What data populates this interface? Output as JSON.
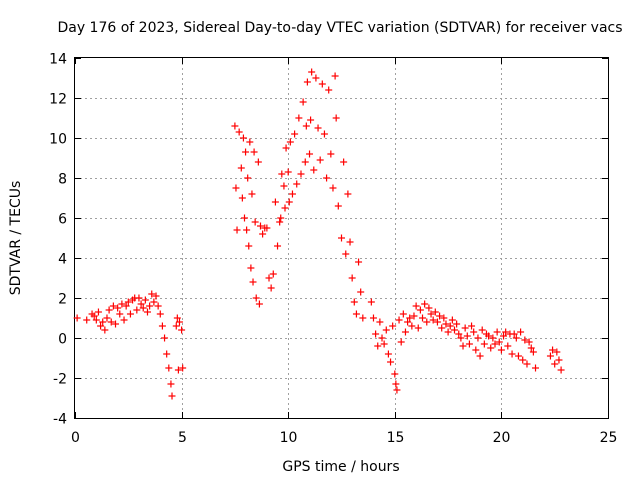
{
  "chart_data": {
    "type": "scatter",
    "title": "Day 176 of 2023, Sidereal Day-to-day VTEC variation (SDTVAR) for receiver vacs",
    "xlabel": "GPS time / hours",
    "ylabel": "SDTVAR / TECUs",
    "xlim": [
      0,
      25
    ],
    "ylim": [
      -4,
      14
    ],
    "xticks": [
      0,
      5,
      10,
      15,
      20,
      25
    ],
    "yticks": [
      -4,
      -2,
      0,
      2,
      4,
      6,
      8,
      10,
      12,
      14
    ],
    "grid": true,
    "marker": "+",
    "color": "#ff0000",
    "series": [
      {
        "name": "SDTVAR",
        "points": [
          [
            0.1,
            1.0
          ],
          [
            0.55,
            0.9
          ],
          [
            0.8,
            1.2
          ],
          [
            0.9,
            1.1
          ],
          [
            1.0,
            0.9
          ],
          [
            1.1,
            1.3
          ],
          [
            1.2,
            0.6
          ],
          [
            1.3,
            0.8
          ],
          [
            1.4,
            0.4
          ],
          [
            1.5,
            1.0
          ],
          [
            1.6,
            1.4
          ],
          [
            1.7,
            0.8
          ],
          [
            1.8,
            1.6
          ],
          [
            1.9,
            0.7
          ],
          [
            2.0,
            1.5
          ],
          [
            2.1,
            1.2
          ],
          [
            2.2,
            1.7
          ],
          [
            2.3,
            0.9
          ],
          [
            2.4,
            1.6
          ],
          [
            2.5,
            1.8
          ],
          [
            2.6,
            1.2
          ],
          [
            2.7,
            1.9
          ],
          [
            2.8,
            2.0
          ],
          [
            2.9,
            1.4
          ],
          [
            3.0,
            2.0
          ],
          [
            3.1,
            1.7
          ],
          [
            3.2,
            1.5
          ],
          [
            3.3,
            1.9
          ],
          [
            3.4,
            1.3
          ],
          [
            3.5,
            1.6
          ],
          [
            3.6,
            2.2
          ],
          [
            3.7,
            1.8
          ],
          [
            3.8,
            2.1
          ],
          [
            3.9,
            1.6
          ],
          [
            4.0,
            1.2
          ],
          [
            4.1,
            0.6
          ],
          [
            4.2,
            0.0
          ],
          [
            4.3,
            -0.8
          ],
          [
            4.4,
            -1.5
          ],
          [
            4.5,
            -2.3
          ],
          [
            4.55,
            -2.9
          ],
          [
            4.75,
            0.6
          ],
          [
            4.8,
            1.0
          ],
          [
            4.85,
            -1.6
          ],
          [
            4.9,
            0.8
          ],
          [
            5.0,
            0.4
          ],
          [
            5.05,
            -1.5
          ],
          [
            7.5,
            10.6
          ],
          [
            7.55,
            7.5
          ],
          [
            7.6,
            5.4
          ],
          [
            7.7,
            10.3
          ],
          [
            7.8,
            8.5
          ],
          [
            7.85,
            7.0
          ],
          [
            7.9,
            10.0
          ],
          [
            7.95,
            6.0
          ],
          [
            8.0,
            9.3
          ],
          [
            8.05,
            5.4
          ],
          [
            8.1,
            8.0
          ],
          [
            8.15,
            4.6
          ],
          [
            8.2,
            9.8
          ],
          [
            8.25,
            3.5
          ],
          [
            8.3,
            7.2
          ],
          [
            8.35,
            2.8
          ],
          [
            8.4,
            9.3
          ],
          [
            8.45,
            5.8
          ],
          [
            8.5,
            2.0
          ],
          [
            8.6,
            8.8
          ],
          [
            8.65,
            1.7
          ],
          [
            8.7,
            5.6
          ],
          [
            8.8,
            5.2
          ],
          [
            8.9,
            5.5
          ],
          [
            9.0,
            5.5
          ],
          [
            9.1,
            3.0
          ],
          [
            9.2,
            2.5
          ],
          [
            9.3,
            3.2
          ],
          [
            9.4,
            6.8
          ],
          [
            9.5,
            4.6
          ],
          [
            9.6,
            5.8
          ],
          [
            9.65,
            6.0
          ],
          [
            9.7,
            8.2
          ],
          [
            9.8,
            7.6
          ],
          [
            9.85,
            6.5
          ],
          [
            9.9,
            9.5
          ],
          [
            10.0,
            8.3
          ],
          [
            10.05,
            6.8
          ],
          [
            10.1,
            9.8
          ],
          [
            10.2,
            7.2
          ],
          [
            10.3,
            10.2
          ],
          [
            10.4,
            7.7
          ],
          [
            10.5,
            11.0
          ],
          [
            10.6,
            8.2
          ],
          [
            10.7,
            11.8
          ],
          [
            10.8,
            8.8
          ],
          [
            10.85,
            10.6
          ],
          [
            10.9,
            12.8
          ],
          [
            11.0,
            9.2
          ],
          [
            11.05,
            10.9
          ],
          [
            11.1,
            13.3
          ],
          [
            11.2,
            8.4
          ],
          [
            11.3,
            13.0
          ],
          [
            11.4,
            10.5
          ],
          [
            11.5,
            8.9
          ],
          [
            11.6,
            12.7
          ],
          [
            11.7,
            10.2
          ],
          [
            11.8,
            8.0
          ],
          [
            11.9,
            12.4
          ],
          [
            12.0,
            9.2
          ],
          [
            12.1,
            7.5
          ],
          [
            12.2,
            13.1
          ],
          [
            12.25,
            11.0
          ],
          [
            12.35,
            6.6
          ],
          [
            12.5,
            5.0
          ],
          [
            12.6,
            8.8
          ],
          [
            12.7,
            4.2
          ],
          [
            12.8,
            7.2
          ],
          [
            12.9,
            4.8
          ],
          [
            13.0,
            3.0
          ],
          [
            13.1,
            1.8
          ],
          [
            13.2,
            1.2
          ],
          [
            13.3,
            3.8
          ],
          [
            13.4,
            2.3
          ],
          [
            13.5,
            1.0
          ],
          [
            13.9,
            1.8
          ],
          [
            14.0,
            1.0
          ],
          [
            14.1,
            0.2
          ],
          [
            14.2,
            -0.4
          ],
          [
            14.3,
            0.8
          ],
          [
            14.4,
            0.0
          ],
          [
            14.5,
            -0.3
          ],
          [
            14.6,
            0.4
          ],
          [
            14.7,
            -0.8
          ],
          [
            14.8,
            -1.2
          ],
          [
            14.9,
            0.6
          ],
          [
            15.0,
            -1.8
          ],
          [
            15.05,
            -2.3
          ],
          [
            15.1,
            -2.6
          ],
          [
            15.2,
            0.9
          ],
          [
            15.3,
            -0.2
          ],
          [
            15.4,
            1.2
          ],
          [
            15.5,
            0.3
          ],
          [
            15.6,
            0.8
          ],
          [
            15.7,
            1.0
          ],
          [
            15.8,
            0.6
          ],
          [
            15.9,
            1.1
          ],
          [
            16.0,
            1.6
          ],
          [
            16.1,
            0.5
          ],
          [
            16.2,
            1.4
          ],
          [
            16.3,
            1.0
          ],
          [
            16.4,
            1.7
          ],
          [
            16.5,
            0.8
          ],
          [
            16.6,
            1.5
          ],
          [
            16.7,
            1.2
          ],
          [
            16.8,
            0.9
          ],
          [
            16.9,
            1.3
          ],
          [
            17.0,
            0.8
          ],
          [
            17.1,
            1.1
          ],
          [
            17.2,
            0.5
          ],
          [
            17.3,
            1.0
          ],
          [
            17.4,
            0.7
          ],
          [
            17.5,
            0.3
          ],
          [
            17.6,
            0.6
          ],
          [
            17.7,
            0.9
          ],
          [
            17.8,
            0.4
          ],
          [
            17.9,
            0.7
          ],
          [
            18.0,
            0.2
          ],
          [
            18.1,
            0.0
          ],
          [
            18.2,
            -0.4
          ],
          [
            18.3,
            0.5
          ],
          [
            18.4,
            0.1
          ],
          [
            18.5,
            -0.3
          ],
          [
            18.6,
            0.6
          ],
          [
            18.7,
            0.3
          ],
          [
            18.8,
            -0.6
          ],
          [
            18.9,
            0.0
          ],
          [
            19.0,
            -0.9
          ],
          [
            19.1,
            0.4
          ],
          [
            19.2,
            -0.3
          ],
          [
            19.3,
            0.2
          ],
          [
            19.4,
            0.1
          ],
          [
            19.5,
            -0.5
          ],
          [
            19.6,
            0.0
          ],
          [
            19.7,
            -0.3
          ],
          [
            19.8,
            0.3
          ],
          [
            19.9,
            -0.2
          ],
          [
            20.0,
            -0.6
          ],
          [
            20.1,
            0.1
          ],
          [
            20.2,
            0.3
          ],
          [
            20.3,
            -0.4
          ],
          [
            20.4,
            0.2
          ],
          [
            20.5,
            -0.8
          ],
          [
            20.6,
            0.2
          ],
          [
            20.7,
            0.0
          ],
          [
            20.8,
            -0.9
          ],
          [
            20.9,
            0.3
          ],
          [
            21.0,
            -1.1
          ],
          [
            21.1,
            -0.1
          ],
          [
            21.2,
            -1.3
          ],
          [
            21.3,
            -0.2
          ],
          [
            21.4,
            -0.5
          ],
          [
            21.5,
            -0.7
          ],
          [
            21.6,
            -1.5
          ],
          [
            22.3,
            -0.9
          ],
          [
            22.4,
            -0.6
          ],
          [
            22.5,
            -1.3
          ],
          [
            22.6,
            -0.7
          ],
          [
            22.7,
            -1.1
          ],
          [
            22.8,
            -1.6
          ]
        ]
      }
    ]
  }
}
